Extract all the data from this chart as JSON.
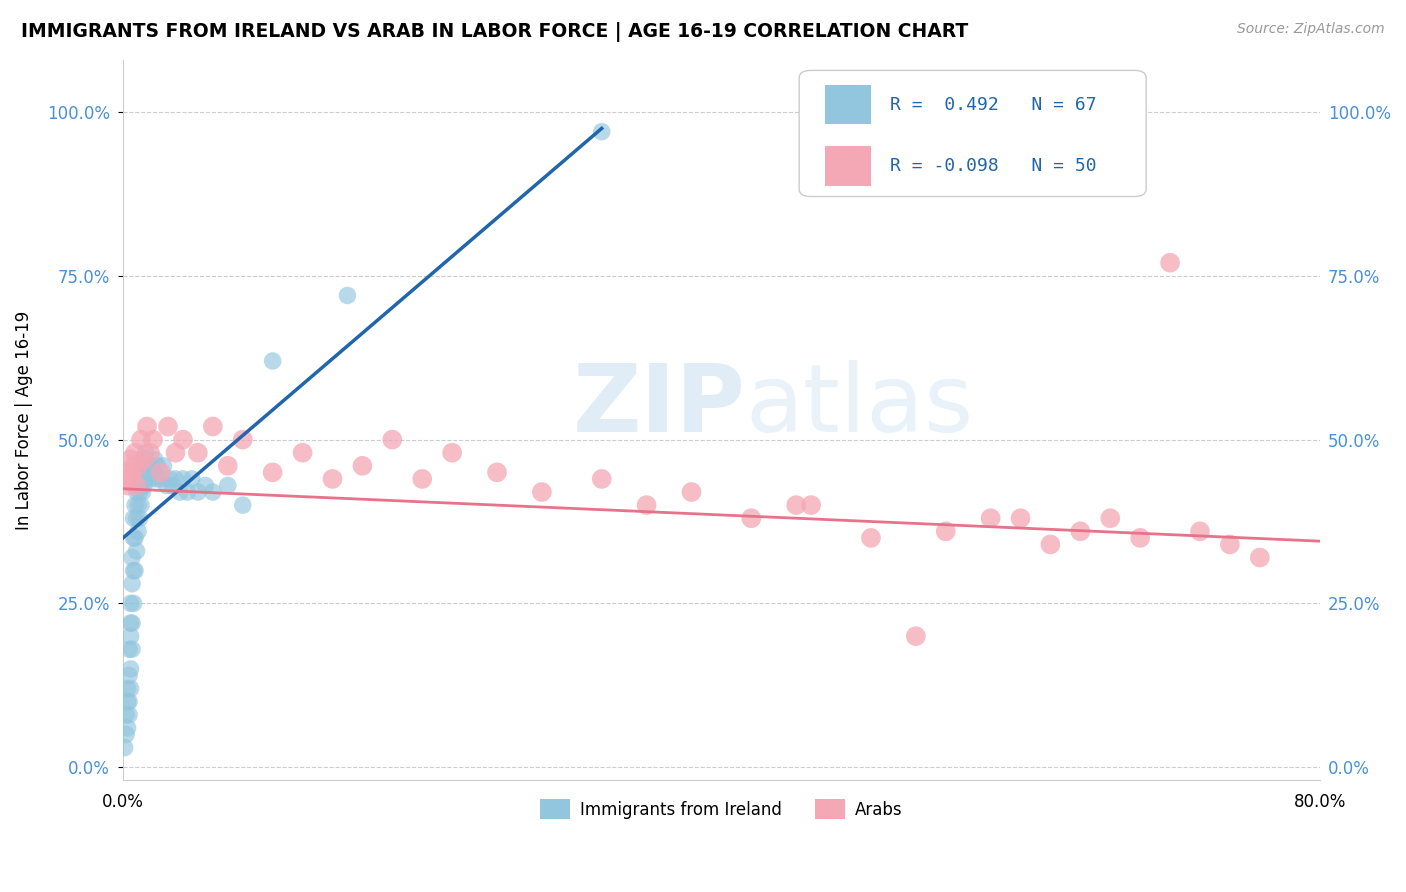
{
  "title": "IMMIGRANTS FROM IRELAND VS ARAB IN LABOR FORCE | AGE 16-19 CORRELATION CHART",
  "source": "Source: ZipAtlas.com",
  "ylabel": "In Labor Force | Age 16-19",
  "ytick_labels": [
    "0.0%",
    "25.0%",
    "50.0%",
    "75.0%",
    "100.0%"
  ],
  "ytick_values": [
    0.0,
    0.25,
    0.5,
    0.75,
    1.0
  ],
  "xlim": [
    0.0,
    0.8
  ],
  "ylim": [
    -0.02,
    1.08
  ],
  "ireland_R": 0.492,
  "ireland_N": 67,
  "arab_R": -0.098,
  "arab_N": 50,
  "legend_labels": [
    "Immigrants from Ireland",
    "Arabs"
  ],
  "ireland_color": "#92c5de",
  "arab_color": "#f4a7b5",
  "ireland_line_color": "#2166ac",
  "arab_line_color": "#e8728a",
  "watermark_zip": "ZIP",
  "watermark_atlas": "atlas",
  "ireland_x": [
    0.001,
    0.002,
    0.002,
    0.003,
    0.003,
    0.003,
    0.004,
    0.004,
    0.004,
    0.004,
    0.005,
    0.005,
    0.005,
    0.005,
    0.005,
    0.006,
    0.006,
    0.006,
    0.006,
    0.007,
    0.007,
    0.007,
    0.007,
    0.008,
    0.008,
    0.008,
    0.009,
    0.009,
    0.009,
    0.01,
    0.01,
    0.011,
    0.011,
    0.012,
    0.012,
    0.013,
    0.013,
    0.014,
    0.014,
    0.015,
    0.015,
    0.016,
    0.017,
    0.018,
    0.019,
    0.02,
    0.021,
    0.022,
    0.023,
    0.025,
    0.027,
    0.029,
    0.031,
    0.033,
    0.035,
    0.038,
    0.04,
    0.043,
    0.046,
    0.05,
    0.055,
    0.06,
    0.07,
    0.08,
    0.1,
    0.15,
    0.32
  ],
  "ireland_y": [
    0.03,
    0.05,
    0.08,
    0.06,
    0.1,
    0.12,
    0.08,
    0.1,
    0.14,
    0.18,
    0.12,
    0.15,
    0.2,
    0.22,
    0.25,
    0.18,
    0.22,
    0.28,
    0.32,
    0.25,
    0.3,
    0.35,
    0.38,
    0.3,
    0.35,
    0.4,
    0.33,
    0.38,
    0.42,
    0.36,
    0.4,
    0.38,
    0.42,
    0.4,
    0.44,
    0.42,
    0.46,
    0.43,
    0.47,
    0.44,
    0.48,
    0.45,
    0.46,
    0.44,
    0.46,
    0.45,
    0.47,
    0.44,
    0.46,
    0.44,
    0.46,
    0.43,
    0.44,
    0.43,
    0.44,
    0.42,
    0.44,
    0.42,
    0.44,
    0.42,
    0.43,
    0.42,
    0.43,
    0.4,
    0.62,
    0.72,
    0.97
  ],
  "ireland_line_x0": 0.0,
  "ireland_line_y0": 0.35,
  "ireland_line_x1": 0.32,
  "ireland_line_y1": 0.975,
  "arab_x": [
    0.002,
    0.003,
    0.004,
    0.005,
    0.006,
    0.007,
    0.008,
    0.009,
    0.01,
    0.012,
    0.014,
    0.016,
    0.018,
    0.02,
    0.025,
    0.03,
    0.035,
    0.04,
    0.05,
    0.06,
    0.07,
    0.08,
    0.1,
    0.12,
    0.14,
    0.16,
    0.18,
    0.2,
    0.22,
    0.25,
    0.28,
    0.32,
    0.35,
    0.38,
    0.42,
    0.46,
    0.5,
    0.55,
    0.58,
    0.62,
    0.64,
    0.66,
    0.68,
    0.7,
    0.72,
    0.74,
    0.76,
    0.6,
    0.45,
    0.53
  ],
  "arab_y": [
    0.44,
    0.43,
    0.45,
    0.47,
    0.44,
    0.46,
    0.48,
    0.43,
    0.46,
    0.5,
    0.47,
    0.52,
    0.48,
    0.5,
    0.45,
    0.52,
    0.48,
    0.5,
    0.48,
    0.52,
    0.46,
    0.5,
    0.45,
    0.48,
    0.44,
    0.46,
    0.5,
    0.44,
    0.48,
    0.45,
    0.42,
    0.44,
    0.4,
    0.42,
    0.38,
    0.4,
    0.35,
    0.36,
    0.38,
    0.34,
    0.36,
    0.38,
    0.35,
    0.77,
    0.36,
    0.34,
    0.32,
    0.38,
    0.4,
    0.2
  ],
  "arab_line_x0": 0.0,
  "arab_line_y0": 0.425,
  "arab_line_x1": 0.8,
  "arab_line_y1": 0.345
}
